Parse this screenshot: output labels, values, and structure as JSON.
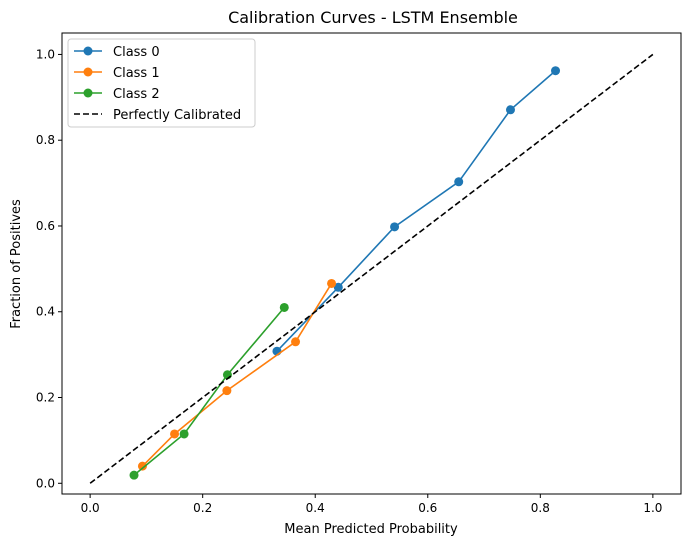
{
  "chart_data": {
    "type": "line",
    "title": "Calibration Curves - LSTM Ensemble",
    "xlabel": "Mean Predicted Probability",
    "ylabel": "Fraction of Positives",
    "xlim": [
      -0.05,
      1.05
    ],
    "ylim": [
      -0.025,
      1.05
    ],
    "xticks": [
      "0.0",
      "0.2",
      "0.4",
      "0.6",
      "0.8",
      "1.0"
    ],
    "yticks": [
      "0.0",
      "0.2",
      "0.4",
      "0.6",
      "0.8",
      "1.0"
    ],
    "grid": false,
    "legend_position": "top-left",
    "series": [
      {
        "name": "Class 0",
        "color": "#1f77b4",
        "marker": "circle",
        "x": [
          0.332,
          0.441,
          0.541,
          0.655,
          0.747,
          0.827
        ],
        "y": [
          0.308,
          0.457,
          0.598,
          0.703,
          0.871,
          0.962
        ]
      },
      {
        "name": "Class 1",
        "color": "#ff7f0e",
        "marker": "circle",
        "x": [
          0.093,
          0.15,
          0.243,
          0.365,
          0.429
        ],
        "y": [
          0.04,
          0.115,
          0.216,
          0.33,
          0.466
        ]
      },
      {
        "name": "Class 2",
        "color": "#2ca02c",
        "marker": "circle",
        "x": [
          0.078,
          0.167,
          0.244,
          0.345
        ],
        "y": [
          0.019,
          0.115,
          0.253,
          0.41
        ]
      },
      {
        "name": "Perfectly Calibrated",
        "color": "#000000",
        "dashed": true,
        "marker": "none",
        "x": [
          0.0,
          1.0
        ],
        "y": [
          0.0,
          1.0
        ]
      }
    ]
  }
}
